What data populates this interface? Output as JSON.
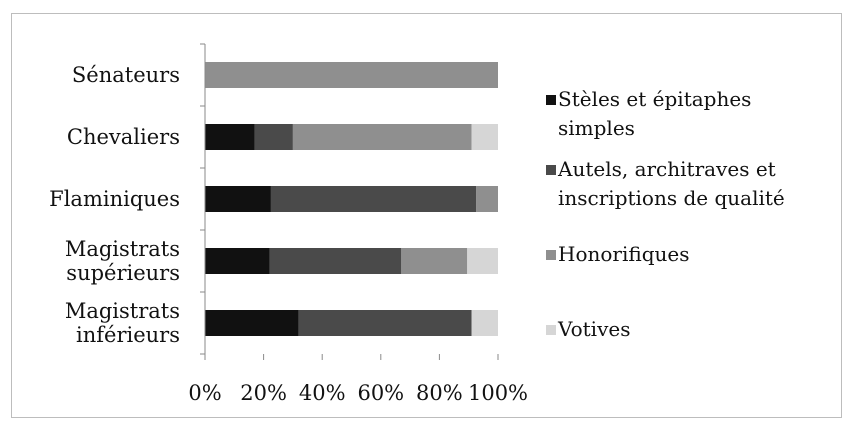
{
  "chart_data": {
    "type": "bar",
    "stacked": "percent",
    "orientation": "horizontal",
    "categories": [
      [
        "Sénateurs"
      ],
      [
        "Chevaliers"
      ],
      [
        "Flaminiques"
      ],
      [
        "Magistrats",
        "supérieurs"
      ],
      [
        "Magistrats",
        "inférieurs"
      ]
    ],
    "series": [
      {
        "name_lines": [
          "Stèles et épitaphes",
          "simples"
        ],
        "color": "#111111",
        "values": [
          0,
          17,
          22.5,
          22,
          32
        ]
      },
      {
        "name_lines": [
          "Autels, architraves et",
          "inscriptions de qualité"
        ],
        "color": "#4a4a4a",
        "values": [
          0,
          13,
          70,
          45,
          59
        ]
      },
      {
        "name_lines": [
          "Honorifiques"
        ],
        "color": "#8f8f8f",
        "values": [
          100,
          61,
          7.5,
          22.5,
          0
        ]
      },
      {
        "name_lines": [
          "Votives"
        ],
        "color": "#d6d6d6",
        "values": [
          0,
          9,
          0,
          10.5,
          9
        ]
      }
    ],
    "x_ticks": [
      "0%",
      "20%",
      "40%",
      "60%",
      "80%",
      "100%"
    ],
    "xlim": [
      0,
      100
    ],
    "grid": false,
    "legend_position": "right"
  }
}
